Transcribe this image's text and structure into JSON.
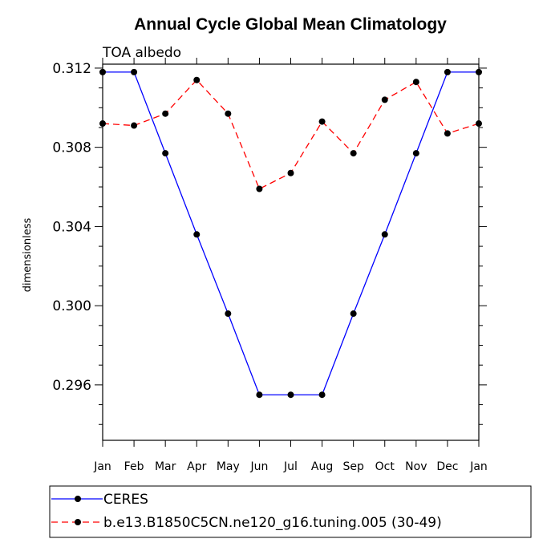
{
  "chart_data": {
    "type": "line",
    "title": "Annual Cycle Global Mean Climatology",
    "subtitle": "TOA albedo",
    "ylabel": "dimensionless",
    "xlabel": "",
    "categories": [
      "Jan",
      "Feb",
      "Mar",
      "Apr",
      "May",
      "Jun",
      "Jul",
      "Aug",
      "Sep",
      "Oct",
      "Nov",
      "Dec",
      "Jan"
    ],
    "ylim": [
      0.2932,
      0.3122
    ],
    "yticks": [
      0.296,
      0.3,
      0.304,
      0.308,
      0.312
    ],
    "ytick_labels": [
      "0.296",
      "0.300",
      "0.304",
      "0.308",
      "0.312"
    ],
    "series": [
      {
        "name": "CERES",
        "color": "#0000ff",
        "dash": "solid",
        "values": [
          0.3118,
          0.3118,
          0.3077,
          0.3036,
          0.2996,
          0.2955,
          0.2955,
          0.2955,
          0.2996,
          0.3036,
          0.3077,
          0.3118,
          0.3118
        ]
      },
      {
        "name": "b.e13.B1850C5CN.ne120_g16.tuning.005 (30-49)",
        "color": "#ff0000",
        "dash": "dashed",
        "values": [
          0.3092,
          0.3091,
          0.3097,
          0.3114,
          0.3097,
          0.3059,
          0.3067,
          0.3093,
          0.3077,
          0.3104,
          0.3113,
          0.3087,
          0.3092
        ]
      }
    ],
    "legend_position": "bottom-left"
  }
}
